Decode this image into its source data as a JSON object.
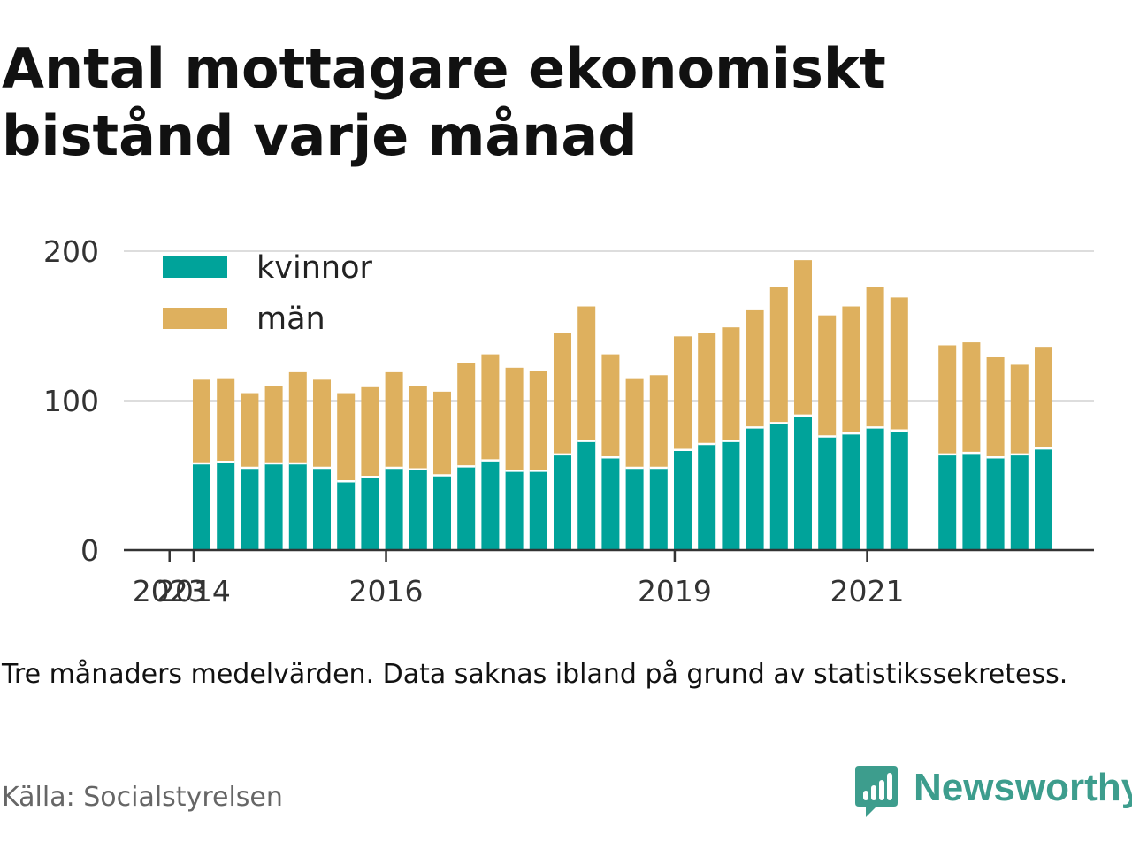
{
  "title": "Antal mottagare ekonomiskt bistånd varje månad",
  "note": "Tre månaders medelvärden. Data saknas ibland på grund av statistikssekretess.",
  "source": "Källa: Socialstyrelsen",
  "brand": {
    "name": "Newsworthy",
    "icon": "bar-chart-speech-bubble-icon",
    "color": "#3d9d8d"
  },
  "chart_data": {
    "type": "bar",
    "stacked": true,
    "x_ticks": [
      "2014",
      "2016",
      "2019",
      "2021",
      "2023"
    ],
    "y_ticks": [
      0,
      100,
      200
    ],
    "ylim": [
      0,
      200
    ],
    "grid": true,
    "legend": "top-left",
    "categories": [
      "2014 Q2",
      "2014 Q3",
      "2014 Q4",
      "2015 Q1",
      "2015 Q2",
      "2015 Q3",
      "2015 Q4",
      "2016 Q1",
      "2016 Q2",
      "2016 Q3",
      "2016 Q4",
      "2017 Q1",
      "2017 Q2",
      "2017 Q3",
      "2017 Q4",
      "2018 Q1",
      "2018 Q2",
      "2018 Q3",
      "2018 Q4",
      "2019 Q1",
      "2019 Q2",
      "2019 Q3",
      "2019 Q4",
      "2020 Q1",
      "2020 Q2",
      "2020 Q3",
      "2020 Q4",
      "2021 Q1",
      "2021 Q2",
      "2021 Q3",
      "2021 Q4",
      "2022 Q1",
      "2022 Q2",
      "2022 Q3",
      "2022 Q4",
      "2023 Q1"
    ],
    "series": [
      {
        "name": "kvinnor",
        "color": "#00a39a",
        "values": [
          58,
          59,
          55,
          58,
          58,
          55,
          46,
          49,
          55,
          54,
          50,
          56,
          60,
          53,
          53,
          64,
          73,
          62,
          55,
          55,
          67,
          71,
          73,
          82,
          85,
          90,
          76,
          78,
          82,
          80,
          null,
          64,
          65,
          62,
          64,
          68
        ]
      },
      {
        "name": "män",
        "color": "#deb05e",
        "values": [
          56,
          56,
          50,
          52,
          61,
          59,
          59,
          60,
          64,
          56,
          56,
          69,
          71,
          69,
          67,
          81,
          90,
          69,
          60,
          62,
          76,
          74,
          76,
          79,
          91,
          104,
          81,
          85,
          94,
          89,
          null,
          73,
          74,
          67,
          60,
          68
        ]
      }
    ]
  }
}
